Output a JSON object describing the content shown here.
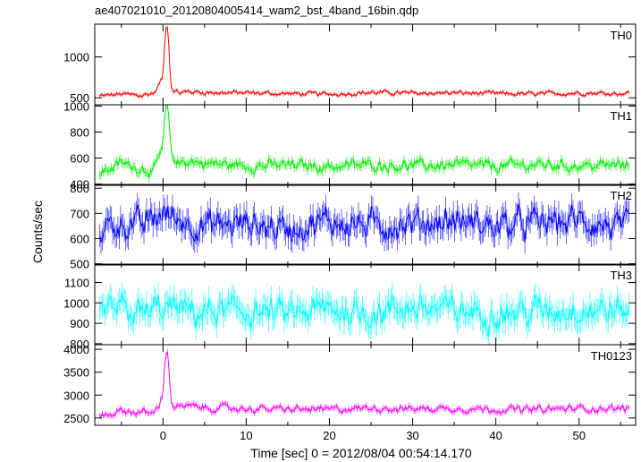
{
  "chart_data": {
    "type": "line",
    "title": "ae407021010_20120804005414_wam2_bst_4band_16bin.qdp",
    "xlabel": "Time [sec] 0 = 2012/08/04 00:54:14.170",
    "ylabel": "Counts/sec",
    "xlim": [
      -8.2,
      56.8
    ],
    "x_ticks": [
      0,
      10,
      20,
      30,
      40,
      50
    ],
    "x_tick_labels": [
      "0",
      "10",
      "20",
      "30",
      "40",
      "50"
    ],
    "grid": false,
    "panels": [
      {
        "name": "TH0",
        "color": "#ff0000",
        "ylim": [
          415,
          1400
        ],
        "y_ticks": [
          500,
          1000
        ],
        "y_tick_labels": [
          "500",
          "1000"
        ],
        "baseline": 550,
        "pre_level": 520,
        "noise": 28,
        "peak": 1380,
        "x": [
          -7.5,
          -5,
          -2.5,
          -1,
          0,
          0.2,
          0.4,
          0.6,
          0.8,
          1.0,
          1.2,
          2,
          3,
          5,
          10,
          15,
          20,
          25,
          30,
          35,
          40,
          45,
          50,
          55
        ],
        "y": [
          520,
          545,
          530,
          560,
          760,
          1150,
          1400,
          1380,
          900,
          640,
          600,
          560,
          575,
          565,
          560,
          550,
          545,
          565,
          555,
          560,
          550,
          545,
          560,
          555
        ]
      },
      {
        "name": "TH1",
        "color": "#00ee00",
        "ylim": [
          390,
          1010
        ],
        "y_ticks": [
          400,
          600,
          800,
          1000
        ],
        "y_tick_labels": [
          "400",
          "600",
          "800",
          "1000"
        ],
        "baseline": 530,
        "pre_level": 530,
        "noise": 45,
        "peak": 1000,
        "x": [
          -7.5,
          -5,
          -2.5,
          -1,
          0,
          0.2,
          0.4,
          0.6,
          0.8,
          1.0,
          1.2,
          2,
          3,
          5,
          10,
          15,
          20,
          25,
          30,
          35,
          40,
          45,
          50,
          55
        ],
        "y": [
          490,
          560,
          520,
          500,
          700,
          880,
          990,
          970,
          800,
          620,
          590,
          560,
          580,
          560,
          540,
          545,
          535,
          550,
          540,
          545,
          535,
          550,
          540,
          545
        ]
      },
      {
        "name": "TH2",
        "color": "#0000ff",
        "ylim": [
          495,
          815
        ],
        "y_ticks": [
          500,
          600,
          700,
          800
        ],
        "y_tick_labels": [
          "500",
          "600",
          "700",
          "800"
        ],
        "baseline": 655,
        "pre_level": 655,
        "noise": 60,
        "peak": 0,
        "x": [
          -7.5,
          -5,
          -2.5,
          0,
          2.5,
          5,
          10,
          15,
          20,
          25,
          30,
          35,
          40,
          45,
          50,
          55
        ],
        "y": [
          640,
          660,
          650,
          700,
          670,
          650,
          660,
          640,
          670,
          650,
          660,
          670,
          650,
          660,
          670,
          640
        ]
      },
      {
        "name": "TH3",
        "color": "#00ffff",
        "ylim": [
          795,
          1190
        ],
        "y_ticks": [
          800,
          900,
          1000,
          1100
        ],
        "y_tick_labels": [
          "800",
          "900",
          "1000",
          "1100"
        ],
        "baseline": 960,
        "pre_level": 960,
        "noise": 75,
        "peak": 0,
        "x": [
          -7.5,
          -5,
          -2.5,
          0,
          2.5,
          5,
          10,
          15,
          20,
          25,
          30,
          35,
          40,
          45,
          50,
          55
        ],
        "y": [
          950,
          970,
          940,
          980,
          960,
          950,
          960,
          940,
          970,
          950,
          980,
          960,
          950,
          960,
          970,
          960
        ]
      },
      {
        "name": "TH0123",
        "color": "#ff00ff",
        "ylim": [
          2340,
          4100
        ],
        "y_ticks": [
          2500,
          3000,
          3500,
          4000
        ],
        "y_tick_labels": [
          "2500",
          "3000",
          "3500",
          "4000"
        ],
        "baseline": 2700,
        "pre_level": 2620,
        "noise": 80,
        "peak": 4000,
        "x": [
          -7.5,
          -5,
          -2.5,
          -1,
          0,
          0.2,
          0.4,
          0.6,
          0.8,
          1.0,
          1.2,
          2,
          3,
          5,
          10,
          15,
          20,
          25,
          30,
          35,
          40,
          45,
          50,
          55
        ],
        "y": [
          2550,
          2650,
          2620,
          2600,
          3000,
          3700,
          4000,
          3950,
          3300,
          2850,
          2780,
          2720,
          2760,
          2720,
          2700,
          2690,
          2680,
          2720,
          2700,
          2710,
          2690,
          2680,
          2710,
          2700
        ]
      }
    ]
  }
}
